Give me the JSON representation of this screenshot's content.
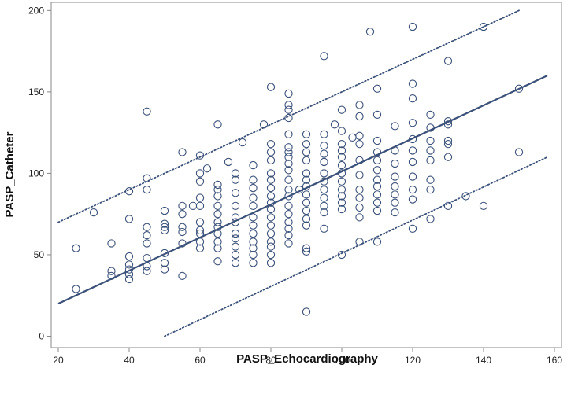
{
  "chart_data": {
    "type": "scatter",
    "xlabel": "PASP_Echocardiography",
    "ylabel": "PASP_Catheter",
    "xlim": [
      18,
      162
    ],
    "ylim": [
      -7,
      205
    ],
    "xticks": [
      20,
      40,
      60,
      80,
      100,
      120,
      140,
      160
    ],
    "yticks": [
      0,
      50,
      100,
      150,
      200
    ],
    "grid": false,
    "legend": "none",
    "colors": {
      "series": "#3b5179",
      "axis": "#888888"
    },
    "series": [
      {
        "kind": "points",
        "points": [
          [
            25,
            54
          ],
          [
            25,
            29
          ],
          [
            30,
            76
          ],
          [
            35,
            57
          ],
          [
            35,
            40
          ],
          [
            35,
            37
          ],
          [
            40,
            89
          ],
          [
            40,
            72
          ],
          [
            40,
            49
          ],
          [
            40,
            44
          ],
          [
            40,
            41
          ],
          [
            40,
            38
          ],
          [
            40,
            35
          ],
          [
            45,
            138
          ],
          [
            45,
            97
          ],
          [
            45,
            90
          ],
          [
            45,
            67
          ],
          [
            45,
            62
          ],
          [
            45,
            57
          ],
          [
            45,
            48
          ],
          [
            45,
            43
          ],
          [
            45,
            40
          ],
          [
            50,
            77
          ],
          [
            50,
            69
          ],
          [
            50,
            67
          ],
          [
            50,
            65
          ],
          [
            50,
            51
          ],
          [
            50,
            45
          ],
          [
            50,
            41
          ],
          [
            55,
            113
          ],
          [
            55,
            80
          ],
          [
            55,
            75
          ],
          [
            55,
            67
          ],
          [
            55,
            64
          ],
          [
            55,
            57
          ],
          [
            55,
            37
          ],
          [
            58,
            80
          ],
          [
            60,
            111
          ],
          [
            60,
            100
          ],
          [
            60,
            95
          ],
          [
            60,
            85
          ],
          [
            60,
            80
          ],
          [
            60,
            70
          ],
          [
            60,
            65
          ],
          [
            60,
            63
          ],
          [
            60,
            58
          ],
          [
            60,
            54
          ],
          [
            62,
            103
          ],
          [
            65,
            130
          ],
          [
            65,
            93
          ],
          [
            65,
            90
          ],
          [
            65,
            86
          ],
          [
            65,
            80
          ],
          [
            65,
            75
          ],
          [
            65,
            70
          ],
          [
            65,
            67
          ],
          [
            65,
            63
          ],
          [
            65,
            58
          ],
          [
            65,
            54
          ],
          [
            65,
            46
          ],
          [
            68,
            107
          ],
          [
            70,
            100
          ],
          [
            70,
            96
          ],
          [
            70,
            88
          ],
          [
            70,
            80
          ],
          [
            70,
            73
          ],
          [
            70,
            70
          ],
          [
            70,
            63
          ],
          [
            70,
            60
          ],
          [
            70,
            55
          ],
          [
            70,
            50
          ],
          [
            70,
            45
          ],
          [
            72,
            119
          ],
          [
            75,
            105
          ],
          [
            75,
            96
          ],
          [
            75,
            91
          ],
          [
            75,
            85
          ],
          [
            75,
            80
          ],
          [
            75,
            73
          ],
          [
            75,
            68
          ],
          [
            75,
            63
          ],
          [
            75,
            58
          ],
          [
            75,
            54
          ],
          [
            75,
            50
          ],
          [
            75,
            45
          ],
          [
            78,
            130
          ],
          [
            80,
            153
          ],
          [
            80,
            118
          ],
          [
            80,
            113
          ],
          [
            80,
            108
          ],
          [
            80,
            100
          ],
          [
            80,
            96
          ],
          [
            80,
            91
          ],
          [
            80,
            86
          ],
          [
            80,
            82
          ],
          [
            80,
            78
          ],
          [
            80,
            73
          ],
          [
            80,
            68
          ],
          [
            80,
            63
          ],
          [
            80,
            58
          ],
          [
            80,
            55
          ],
          [
            80,
            50
          ],
          [
            80,
            45
          ],
          [
            85,
            149
          ],
          [
            85,
            142
          ],
          [
            85,
            139
          ],
          [
            85,
            134
          ],
          [
            85,
            124
          ],
          [
            85,
            116
          ],
          [
            85,
            113
          ],
          [
            85,
            110
          ],
          [
            85,
            106
          ],
          [
            85,
            102
          ],
          [
            85,
            96
          ],
          [
            85,
            90
          ],
          [
            85,
            86
          ],
          [
            85,
            80
          ],
          [
            85,
            75
          ],
          [
            85,
            70
          ],
          [
            85,
            66
          ],
          [
            85,
            62
          ],
          [
            85,
            57
          ],
          [
            88,
            90
          ],
          [
            90,
            124
          ],
          [
            90,
            118
          ],
          [
            90,
            113
          ],
          [
            90,
            108
          ],
          [
            90,
            100
          ],
          [
            90,
            96
          ],
          [
            90,
            92
          ],
          [
            90,
            87
          ],
          [
            90,
            82
          ],
          [
            90,
            77
          ],
          [
            90,
            72
          ],
          [
            90,
            68
          ],
          [
            90,
            54
          ],
          [
            90,
            52
          ],
          [
            90,
            15
          ],
          [
            95,
            172
          ],
          [
            95,
            124
          ],
          [
            95,
            117
          ],
          [
            95,
            112
          ],
          [
            95,
            107
          ],
          [
            95,
            100
          ],
          [
            95,
            95
          ],
          [
            95,
            90
          ],
          [
            95,
            85
          ],
          [
            95,
            80
          ],
          [
            95,
            76
          ],
          [
            95,
            66
          ],
          [
            98,
            130
          ],
          [
            100,
            139
          ],
          [
            100,
            126
          ],
          [
            100,
            118
          ],
          [
            100,
            114
          ],
          [
            100,
            110
          ],
          [
            100,
            105
          ],
          [
            100,
            100
          ],
          [
            100,
            95
          ],
          [
            100,
            90
          ],
          [
            100,
            86
          ],
          [
            100,
            82
          ],
          [
            100,
            78
          ],
          [
            100,
            50
          ],
          [
            103,
            122
          ],
          [
            105,
            142
          ],
          [
            105,
            135
          ],
          [
            105,
            123
          ],
          [
            105,
            118
          ],
          [
            105,
            108
          ],
          [
            105,
            99
          ],
          [
            105,
            90
          ],
          [
            105,
            85
          ],
          [
            105,
            79
          ],
          [
            105,
            73
          ],
          [
            105,
            58
          ],
          [
            108,
            187
          ],
          [
            110,
            152
          ],
          [
            110,
            136
          ],
          [
            110,
            120
          ],
          [
            110,
            113
          ],
          [
            110,
            108
          ],
          [
            110,
            102
          ],
          [
            110,
            96
          ],
          [
            110,
            92
          ],
          [
            110,
            87
          ],
          [
            110,
            82
          ],
          [
            110,
            77
          ],
          [
            110,
            58
          ],
          [
            115,
            129
          ],
          [
            115,
            114
          ],
          [
            115,
            106
          ],
          [
            115,
            98
          ],
          [
            115,
            92
          ],
          [
            115,
            87
          ],
          [
            115,
            82
          ],
          [
            115,
            76
          ],
          [
            120,
            190
          ],
          [
            120,
            155
          ],
          [
            120,
            146
          ],
          [
            120,
            131
          ],
          [
            120,
            121
          ],
          [
            120,
            114
          ],
          [
            120,
            107
          ],
          [
            120,
            98
          ],
          [
            120,
            90
          ],
          [
            120,
            84
          ],
          [
            120,
            66
          ],
          [
            125,
            136
          ],
          [
            125,
            128
          ],
          [
            125,
            120
          ],
          [
            125,
            114
          ],
          [
            125,
            108
          ],
          [
            125,
            96
          ],
          [
            125,
            90
          ],
          [
            125,
            72
          ],
          [
            130,
            169
          ],
          [
            130,
            132
          ],
          [
            130,
            130
          ],
          [
            130,
            120
          ],
          [
            130,
            118
          ],
          [
            130,
            110
          ],
          [
            130,
            80
          ],
          [
            135,
            86
          ],
          [
            140,
            190
          ],
          [
            140,
            80
          ],
          [
            150,
            152
          ],
          [
            150,
            113
          ]
        ]
      },
      {
        "kind": "fit",
        "x": [
          20,
          158
        ],
        "y": [
          20,
          160
        ]
      },
      {
        "kind": "upper-bound",
        "x": [
          20,
          150
        ],
        "y": [
          70,
          200
        ]
      },
      {
        "kind": "lower-bound",
        "x": [
          50,
          158
        ],
        "y": [
          0,
          110
        ]
      }
    ]
  }
}
